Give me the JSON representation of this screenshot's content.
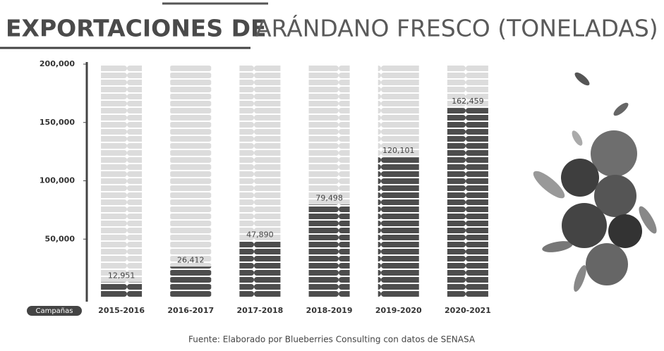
{
  "chart_data": {
    "type": "bar",
    "title": [
      "EXPORTACIONES DE",
      "ARÁNDANO FRESCO (TONELADAS)"
    ],
    "x_label": "Campañas",
    "categories": [
      "2015-2016",
      "2016-2017",
      "2017-2018",
      "2018-2019",
      "2019-2020",
      "2020-2021"
    ],
    "values": [
      12951,
      26412,
      47890,
      79498,
      120101,
      162459
    ],
    "value_labels": [
      "12,951",
      "26,412",
      "47,890",
      "79,498",
      "120,101",
      "162,459"
    ],
    "color": "#4d4d4d",
    "ylim": [
      0,
      200000
    ],
    "yticks": [
      {
        "value": 50000,
        "label": "50,000"
      },
      {
        "value": 100000,
        "label": "100,000"
      },
      {
        "value": 150000,
        "label": "150,000"
      },
      {
        "value": 200000,
        "label": "200,000"
      }
    ],
    "source": "Fuente: Elaborado por Blueberries Consulting con datos de SENASA"
  }
}
